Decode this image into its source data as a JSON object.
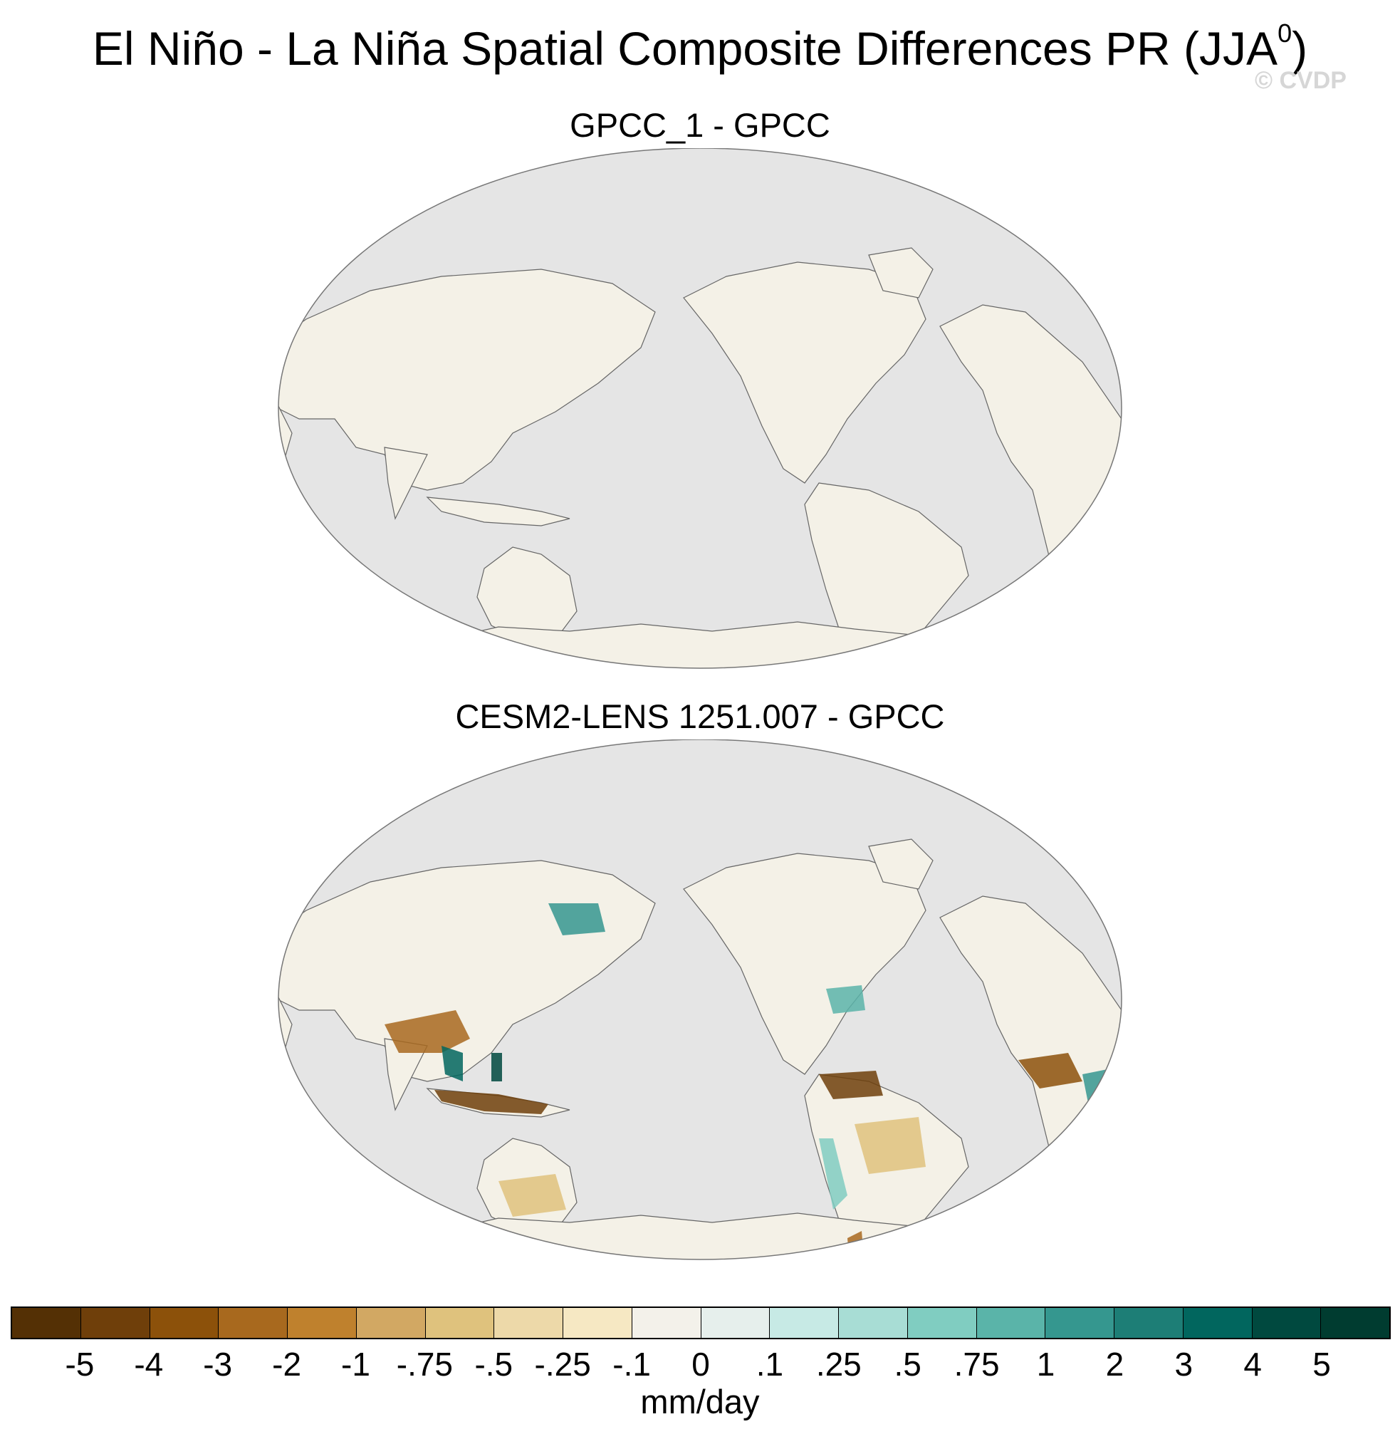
{
  "figure": {
    "title": "El Niño - La Niña Spatial Composite Differences PR (JJA",
    "title_sup": "0",
    "title_end": ")",
    "watermark": "© CVDP"
  },
  "panels": [
    {
      "title": "GPCC_1 - GPCC"
    },
    {
      "title": "CESM2-LENS 1251.007 - GPCC"
    }
  ],
  "colorbar": {
    "units": "mm/day",
    "labels": [
      "-5",
      "-4",
      "-3",
      "-2",
      "-1",
      "-.75",
      "-.5",
      "-.25",
      "-.1",
      "0",
      ".1",
      ".25",
      ".5",
      ".75",
      "1",
      "2",
      "3",
      "4",
      "5"
    ],
    "colors": [
      "#543005",
      "#6f3f0a",
      "#8c510a",
      "#a8691e",
      "#bf812d",
      "#d2a863",
      "#dfc27d",
      "#edd9a9",
      "#f6e8c3",
      "#f3f1ea",
      "#e6efec",
      "#c7eae5",
      "#a8ddd5",
      "#80cdc1",
      "#5ab4a9",
      "#35978f",
      "#1d7e76",
      "#01665e",
      "#00493f",
      "#003c30"
    ],
    "ocean_color": "#e5e5e5",
    "land_color": "#f4f1e7"
  }
}
